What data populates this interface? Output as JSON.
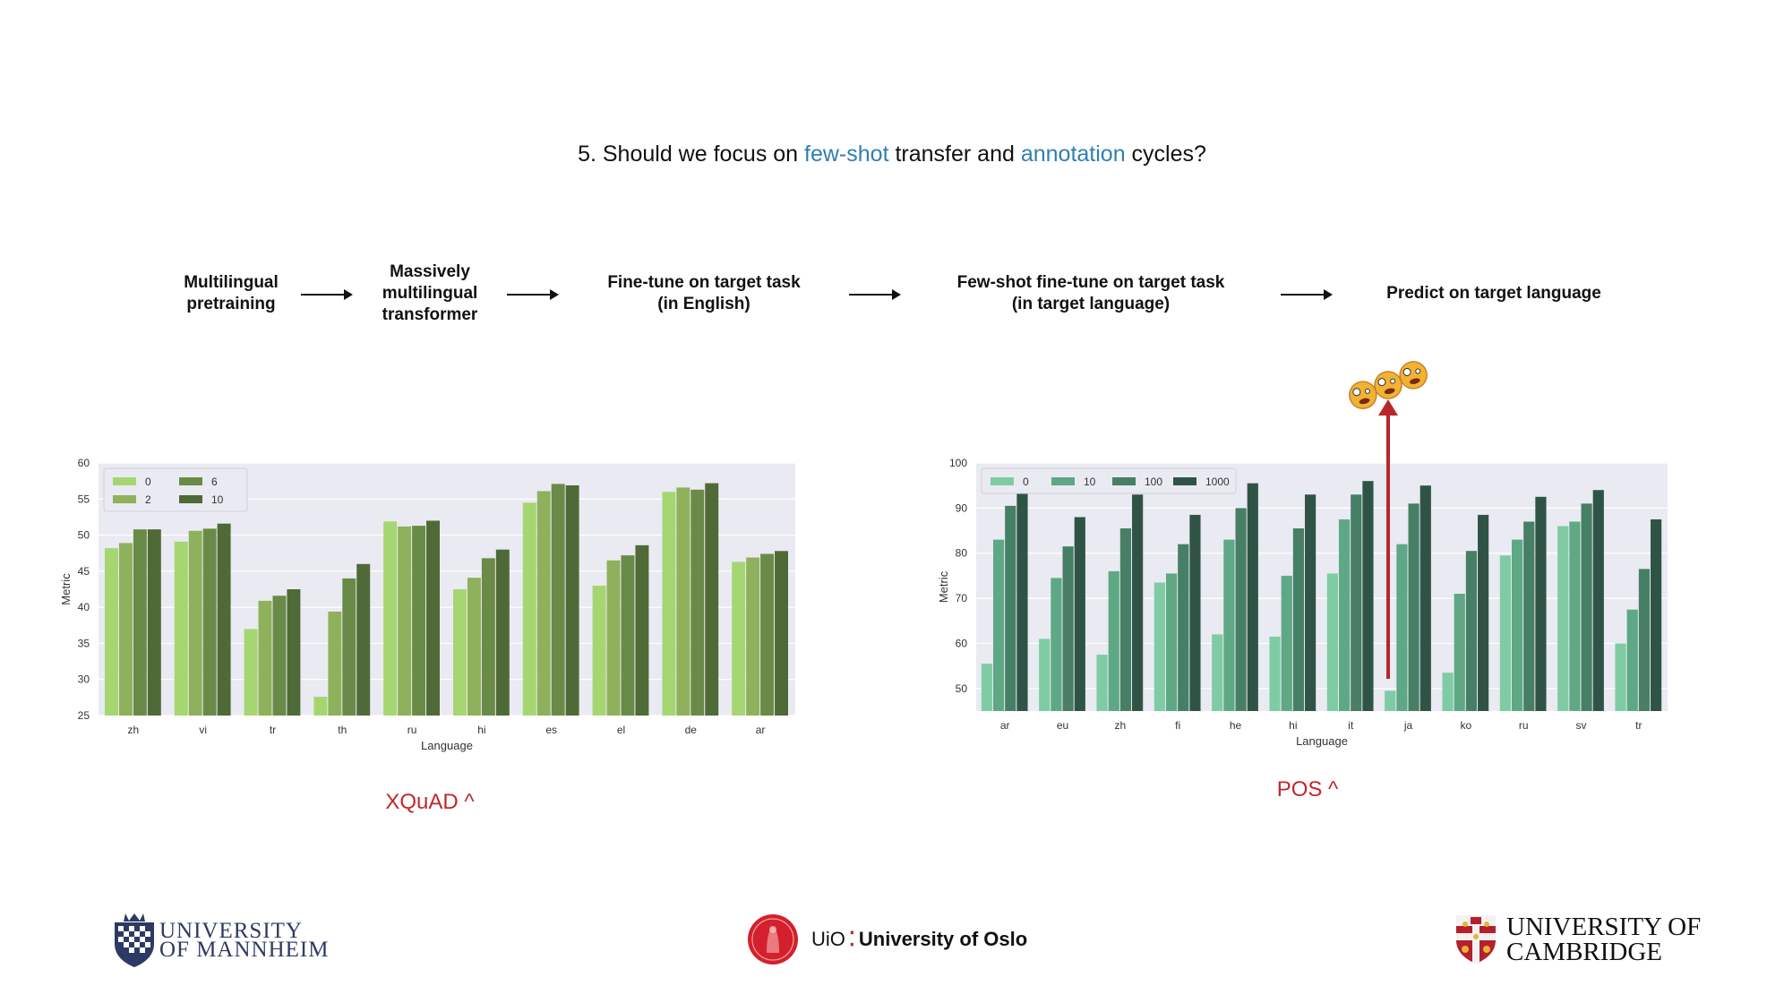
{
  "title": {
    "prefix": "5. Should we focus on ",
    "highlight1": "few-shot",
    "middle": " transfer and ",
    "highlight2": "annotation",
    "suffix": " cycles?"
  },
  "pipeline": {
    "steps": [
      [
        "Multilingual",
        "pretraining"
      ],
      [
        "Massively",
        "multilingual",
        "transformer"
      ],
      [
        "Fine-tune on target task",
        "(in English)"
      ],
      [
        "Few-shot fine-tune on target task",
        "(in target language)"
      ],
      [
        "Predict on target language"
      ]
    ]
  },
  "colors": {
    "accent_blue": "#2f7fb3",
    "caption_red": "#c0282a",
    "plot_bg": "#eaeaf2"
  },
  "captions": {
    "left": "XQuAD ^",
    "right": "POS ^"
  },
  "decorations": {
    "emoji": "🤪",
    "emoji_count": 3,
    "arrow": "red-up-arrow"
  },
  "logos": {
    "mannheim": [
      "UNIVERSITY",
      "OF MANNHEIM"
    ],
    "oslo": {
      "short": "UiO",
      "name": "University of Oslo"
    },
    "cambridge": [
      "UNIVERSITY OF",
      "CAMBRIDGE"
    ]
  },
  "chart_data": [
    {
      "type": "bar",
      "xlabel": "Language",
      "ylabel": "Metric",
      "ylim": [
        25,
        60
      ],
      "yticks": [
        25,
        30,
        35,
        40,
        45,
        50,
        55,
        60
      ],
      "legend_placement": "top-left",
      "categories": [
        "zh",
        "vi",
        "tr",
        "th",
        "ru",
        "hi",
        "es",
        "el",
        "de",
        "ar"
      ],
      "series": [
        {
          "name": "0",
          "color": "#a6d672",
          "values": [
            48.2,
            49.1,
            37.0,
            27.6,
            51.9,
            42.5,
            54.5,
            43.0,
            56.0,
            46.3
          ]
        },
        {
          "name": "2",
          "color": "#8fb15c",
          "values": [
            48.9,
            50.6,
            40.9,
            39.4,
            51.2,
            44.1,
            56.1,
            46.5,
            56.6,
            46.9
          ]
        },
        {
          "name": "6",
          "color": "#6a8b47",
          "values": [
            50.8,
            50.9,
            41.6,
            44.0,
            51.3,
            46.8,
            57.1,
            47.2,
            56.3,
            47.4
          ]
        },
        {
          "name": "10",
          "color": "#4f6a37",
          "values": [
            50.8,
            51.6,
            42.5,
            46.0,
            52.0,
            48.0,
            56.9,
            48.6,
            57.2,
            47.8
          ]
        }
      ]
    },
    {
      "type": "bar",
      "xlabel": "Language",
      "ylabel": "Metric",
      "ylim": [
        45,
        100
      ],
      "yticks": [
        50,
        60,
        70,
        80,
        90,
        100
      ],
      "legend_placement": "top-left",
      "categories": [
        "ar",
        "eu",
        "zh",
        "fi",
        "he",
        "hi",
        "it",
        "ja",
        "ko",
        "ru",
        "sv",
        "tr"
      ],
      "series": [
        {
          "name": "0",
          "color": "#7fcca4",
          "values": [
            55.5,
            61.0,
            57.5,
            73.5,
            62.0,
            61.5,
            75.5,
            49.5,
            53.5,
            79.5,
            86.0,
            60.0
          ]
        },
        {
          "name": "10",
          "color": "#5fa885",
          "values": [
            83.0,
            74.5,
            76.0,
            75.5,
            83.0,
            75.0,
            87.5,
            82.0,
            71.0,
            83.0,
            87.0,
            67.5
          ]
        },
        {
          "name": "100",
          "color": "#467f65",
          "values": [
            90.5,
            81.5,
            85.5,
            82.0,
            90.0,
            85.5,
            93.0,
            91.0,
            80.5,
            87.0,
            91.0,
            76.5
          ]
        },
        {
          "name": "1000",
          "color": "#2f5446",
          "values": [
            95.0,
            88.0,
            93.0,
            88.5,
            95.5,
            93.0,
            96.0,
            95.0,
            88.5,
            92.5,
            94.0,
            87.5
          ]
        }
      ]
    }
  ]
}
